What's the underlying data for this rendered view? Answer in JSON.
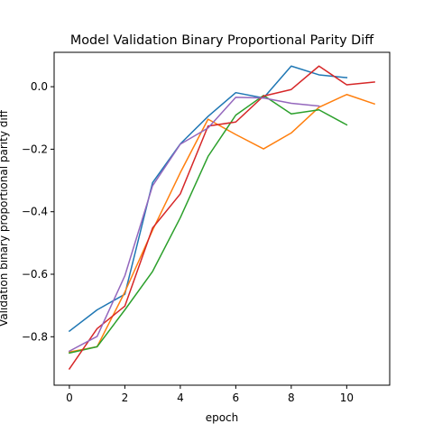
{
  "chart_data": {
    "type": "line",
    "title": "Model Validation Binary Proportional Parity Diff",
    "xlabel": "epoch",
    "ylabel": "Validation binary proportional parity diff",
    "xlim": [
      -0.55,
      11.55
    ],
    "ylim": [
      -0.955,
      0.11
    ],
    "xticks": [
      0,
      2,
      4,
      6,
      8,
      10
    ],
    "xtick_labels": [
      "0",
      "2",
      "4",
      "6",
      "8",
      "10"
    ],
    "yticks": [
      -0.8,
      -0.6,
      -0.4,
      -0.2,
      0.0
    ],
    "ytick_labels": [
      "−0.8",
      "−0.6",
      "−0.4",
      "−0.2",
      "0.0"
    ],
    "grid": false,
    "legend": "none",
    "series": [
      {
        "color": "#1f77b4",
        "x": [
          0,
          1,
          2,
          3,
          4,
          5,
          6,
          7,
          8,
          9,
          10
        ],
        "values": [
          -0.782,
          -0.714,
          -0.664,
          -0.307,
          -0.183,
          -0.095,
          -0.019,
          -0.036,
          0.066,
          0.038,
          0.029
        ]
      },
      {
        "color": "#ff7f0e",
        "x": [
          0,
          1,
          2,
          3,
          4,
          5,
          6,
          7,
          8,
          9,
          10,
          11
        ],
        "values": [
          -0.849,
          -0.832,
          -0.657,
          -0.459,
          -0.275,
          -0.104,
          -0.153,
          -0.199,
          -0.148,
          -0.066,
          -0.025,
          -0.055
        ]
      },
      {
        "color": "#2ca02c",
        "x": [
          0,
          1,
          2,
          3,
          4,
          5,
          6,
          7,
          8,
          9,
          10
        ],
        "values": [
          -0.852,
          -0.832,
          -0.714,
          -0.591,
          -0.419,
          -0.223,
          -0.091,
          -0.028,
          -0.087,
          -0.074,
          -0.122
        ]
      },
      {
        "color": "#d62728",
        "x": [
          0,
          1,
          2,
          3,
          4,
          5,
          6,
          7,
          8,
          9,
          10,
          11
        ],
        "values": [
          -0.903,
          -0.774,
          -0.702,
          -0.452,
          -0.343,
          -0.126,
          -0.113,
          -0.03,
          -0.009,
          0.066,
          0.006,
          0.015
        ]
      },
      {
        "color": "#9467bd",
        "x": [
          0,
          1,
          2,
          3,
          4,
          5,
          6,
          7,
          8,
          9
        ],
        "values": [
          -0.846,
          -0.799,
          -0.605,
          -0.317,
          -0.184,
          -0.132,
          -0.034,
          -0.036,
          -0.053,
          -0.062
        ]
      }
    ]
  }
}
